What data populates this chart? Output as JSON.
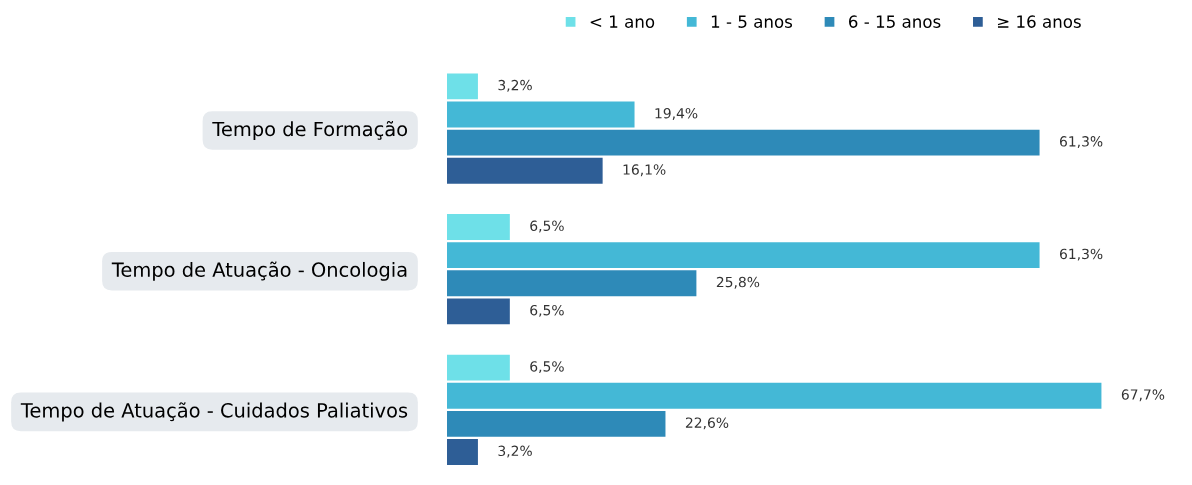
{
  "chart_data": {
    "type": "bar",
    "orientation": "horizontal",
    "categories": [
      "Tempo de Formação",
      "Tempo de Atuação - Oncologia",
      "Tempo de Atuação - Cuidados Paliativos"
    ],
    "series": [
      {
        "name": "< 1 ano",
        "color": "#6ee0e8",
        "values": [
          3.2,
          6.5,
          6.5
        ],
        "value_labels": [
          "3,2%",
          "6,5%",
          "6,5%"
        ]
      },
      {
        "name": "1 - 5 anos",
        "color": "#44b8d6",
        "values": [
          19.4,
          61.3,
          67.7
        ],
        "value_labels": [
          "19,4%",
          "61,3%",
          "67,7%"
        ]
      },
      {
        "name": "6 - 15 anos",
        "color": "#2e8ab8",
        "values": [
          61.3,
          25.8,
          22.6
        ],
        "value_labels": [
          "61,3%",
          "25,8%",
          "22,6%"
        ]
      },
      {
        "name": "≥ 16 anos",
        "color": "#2e5e96",
        "values": [
          16.1,
          6.5,
          3.2
        ],
        "value_labels": [
          "16,1%",
          "6,5%",
          "3,2%"
        ]
      }
    ],
    "legend": "top right",
    "marker": "square",
    "grid": false
  }
}
